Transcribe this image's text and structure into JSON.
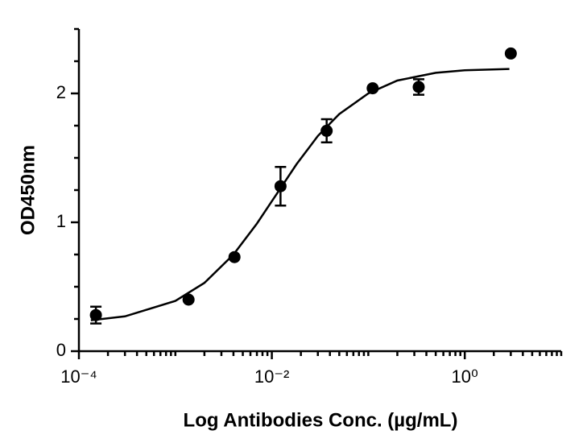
{
  "chart_data": {
    "type": "scatter",
    "x_label": "Log Antibodies Conc. (µg/mL)",
    "y_label": "OD450nm",
    "log_x": true,
    "color": "#000000",
    "x": [
      0.00015,
      0.00137,
      0.0041,
      0.0123,
      0.037,
      0.111,
      0.333,
      3
    ],
    "values": [
      0.28,
      0.4,
      0.73,
      1.28,
      1.71,
      2.04,
      2.05,
      2.31
    ],
    "errors": [
      0.065,
      null,
      null,
      0.15,
      0.09,
      null,
      0.06,
      null
    ],
    "fit": {
      "x": [
        0.000133,
        0.0003,
        0.001,
        0.002,
        0.004,
        0.007,
        0.011,
        0.018,
        0.03,
        0.05,
        0.1,
        0.2,
        0.5,
        1,
        2.9
      ],
      "values": [
        0.24,
        0.27,
        0.39,
        0.53,
        0.75,
        0.99,
        1.21,
        1.45,
        1.67,
        1.84,
        2.0,
        2.1,
        2.16,
        2.18,
        2.19
      ]
    },
    "xlim": [
      0.0001,
      10
    ],
    "ylim": [
      0,
      2.5
    ],
    "xticks": [
      {
        "value": 0.0001,
        "label": "10⁻⁴"
      },
      {
        "value": 0.01,
        "label": "10⁻²"
      },
      {
        "value": 1,
        "label": "10⁰"
      }
    ],
    "xminorticks": [
      0.0002,
      0.0003,
      0.0004,
      0.0005,
      0.0006,
      0.0007,
      0.0008,
      0.0009,
      0.001,
      0.002,
      0.003,
      0.004,
      0.005,
      0.006,
      0.007,
      0.008,
      0.009,
      0.02,
      0.03,
      0.04,
      0.05,
      0.06,
      0.07,
      0.08,
      0.09,
      0.1,
      0.2,
      0.3,
      0.4,
      0.5,
      0.6,
      0.7,
      0.8,
      0.9,
      2,
      3,
      4,
      5,
      6,
      7,
      8,
      9,
      10
    ],
    "yticks": [
      0,
      1,
      2
    ],
    "yminorticks": [
      0.25,
      0.5,
      0.75,
      1.25,
      1.5,
      1.75,
      2.25,
      2.5
    ]
  }
}
